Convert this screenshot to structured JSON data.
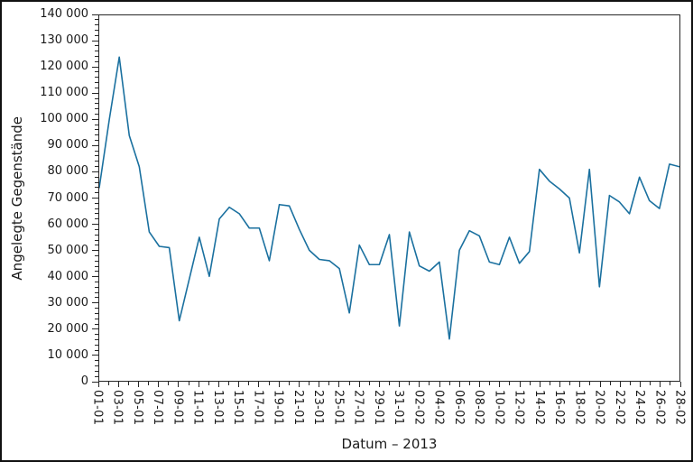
{
  "chart_data": {
    "type": "line",
    "title": "",
    "xlabel": "Datum – 2013",
    "ylabel": "Angelegte Gegenstände",
    "line_color": "#1a709f",
    "grid": false,
    "legend": null,
    "ylim": [
      0,
      140000
    ],
    "y_tick_step": 10000,
    "y_minor_tick_step": 2000,
    "y_tick_labels": [
      "0",
      "10 000",
      "20 000",
      "30 000",
      "40 000",
      "50 000",
      "60 000",
      "70 000",
      "80 000",
      "90 000",
      "100 000",
      "110 000",
      "120 000",
      "130 000",
      "140 000"
    ],
    "x_tick_labels_shown": [
      "01-01",
      "03-01",
      "05-01",
      "07-01",
      "09-01",
      "11-01",
      "13-01",
      "15-01",
      "17-01",
      "19-01",
      "21-01",
      "23-01",
      "25-01",
      "27-01",
      "29-01",
      "31-01",
      "02-02",
      "04-02",
      "06-02",
      "08-02",
      "10-02",
      "12-02",
      "14-02",
      "16-02",
      "18-02",
      "20-02",
      "22-02",
      "24-02",
      "26-02",
      "28-02"
    ],
    "categories": [
      "01-01",
      "02-01",
      "03-01",
      "04-01",
      "05-01",
      "06-01",
      "07-01",
      "08-01",
      "09-01",
      "10-01",
      "11-01",
      "12-01",
      "13-01",
      "14-01",
      "15-01",
      "16-01",
      "17-01",
      "18-01",
      "19-01",
      "20-01",
      "21-01",
      "22-01",
      "23-01",
      "24-01",
      "25-01",
      "26-01",
      "27-01",
      "28-01",
      "29-01",
      "30-01",
      "31-01",
      "01-02",
      "02-02",
      "03-02",
      "04-02",
      "05-02",
      "06-02",
      "07-02",
      "08-02",
      "09-02",
      "10-02",
      "11-02",
      "12-02",
      "13-02",
      "14-02",
      "15-02",
      "16-02",
      "17-02",
      "18-02",
      "19-02",
      "20-02",
      "21-02",
      "22-02",
      "23-02",
      "24-02",
      "25-02",
      "26-02",
      "27-02",
      "28-02"
    ],
    "values": [
      74000,
      100000,
      124000,
      94000,
      82000,
      57000,
      51500,
      51000,
      23000,
      39000,
      55000,
      40000,
      62000,
      66500,
      64000,
      58500,
      58500,
      46000,
      67500,
      67000,
      58000,
      50000,
      46500,
      46000,
      43000,
      26000,
      52000,
      44500,
      44500,
      56000,
      21000,
      57000,
      44000,
      42000,
      45500,
      16000,
      50000,
      57500,
      55500,
      45500,
      44500,
      55000,
      45000,
      49500,
      81000,
      76500,
      73500,
      70000,
      49000,
      81000,
      36000,
      71000,
      68500,
      64000,
      78000,
      69000,
      66000,
      83000,
      82000
    ]
  }
}
